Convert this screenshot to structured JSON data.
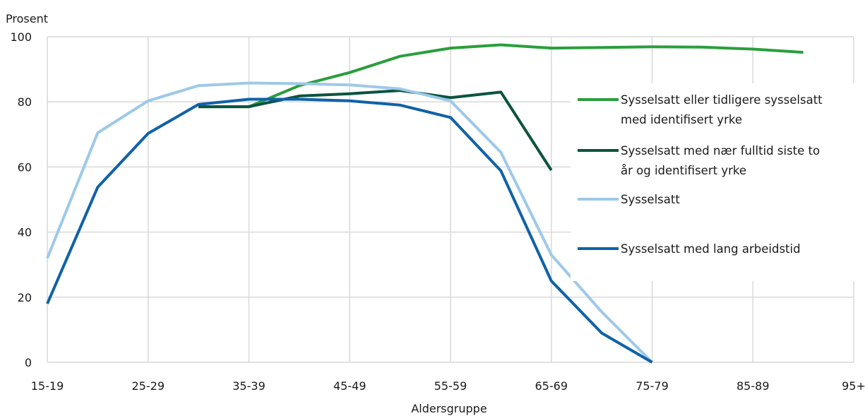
{
  "chart_data": {
    "type": "line",
    "title": "",
    "xlabel": "Aldersgruppe",
    "ylabel": "Prosent",
    "ylim": [
      0,
      100
    ],
    "yticks": [
      0,
      20,
      40,
      60,
      80,
      100
    ],
    "categories": [
      "15-19",
      "20-24",
      "25-29",
      "30-34",
      "35-39",
      "40-44",
      "45-49",
      "50-54",
      "55-59",
      "60-64",
      "65-69",
      "70-74",
      "75-79",
      "80-84",
      "85-89",
      "90-94",
      "95+"
    ],
    "x_tick_labels": [
      "15-19",
      "25-29",
      "35-39",
      "45-49",
      "55-59",
      "65-69",
      "75-79",
      "85-89",
      "95+"
    ],
    "grid": true,
    "legend_position": "right",
    "series": [
      {
        "name": "Sysselsatt eller tidligere sysselsatt med identifisert yrke",
        "legend_lines": [
          "Sysselsatt eller tidligere sysselsatt",
          "med identifisert yrke"
        ],
        "color": "#2a9e3c",
        "values": [
          null,
          null,
          null,
          78.5,
          78.5,
          85,
          89,
          94,
          96.5,
          97.5,
          96.5,
          96.7,
          96.9,
          96.8,
          96.2,
          95.2,
          null
        ]
      },
      {
        "name": "Sysselsatt med nær fulltid siste to år og identifisert yrke",
        "legend_lines": [
          "Sysselsatt med nær fulltid siste to",
          "år og identifisert yrke"
        ],
        "color": "#0d5340",
        "values": [
          null,
          null,
          null,
          78.5,
          78.5,
          81.8,
          82.5,
          83.5,
          81.3,
          83,
          59,
          null,
          null,
          null,
          null,
          null,
          null
        ]
      },
      {
        "name": "Sysselsatt",
        "legend_lines": [
          "Sysselsatt"
        ],
        "color": "#9ec9e8",
        "values": [
          32,
          70.5,
          80.3,
          85,
          85.8,
          85.6,
          85.2,
          84,
          80.3,
          64.5,
          33,
          15.5,
          0,
          null,
          null,
          null,
          null
        ]
      },
      {
        "name": "Sysselsatt med lang arbeidstid",
        "legend_lines": [
          "Sysselsatt med lang arbeidstid"
        ],
        "color": "#0f62a8",
        "values": [
          18,
          53.8,
          70.3,
          79.2,
          80.8,
          80.8,
          80.3,
          79,
          75.2,
          58.8,
          25,
          9,
          0,
          null,
          null,
          null,
          null
        ]
      }
    ]
  }
}
